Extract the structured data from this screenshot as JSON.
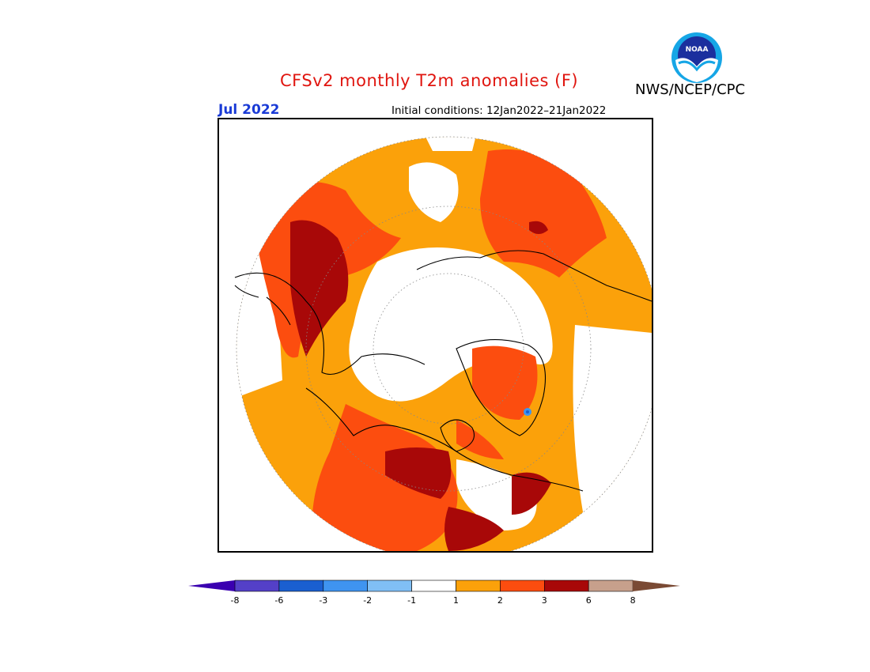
{
  "title": "CFSv2 monthly T2m anomalies (F)",
  "agency": "NWS/NCEP/CPC",
  "logo_text": "NOAA",
  "valid_month": "Jul 2022",
  "initial_conditions": "Initial conditions: 12Jan2022–21Jan2022",
  "map": {
    "projection": "north polar stereographic",
    "variable": "2-m temperature anomaly",
    "units": "F"
  },
  "colorbar": {
    "left_arrow_color": "#3a00b0",
    "right_arrow_color": "#7a4a34",
    "bins": [
      {
        "color": "#5440c8"
      },
      {
        "color": "#1a5fd0"
      },
      {
        "color": "#3f94f0"
      },
      {
        "color": "#80bff5"
      },
      {
        "color": "#ffffff"
      },
      {
        "color": "#fba10a"
      },
      {
        "color": "#fc4d0f"
      },
      {
        "color": "#a80808"
      },
      {
        "color": "#c7a08c"
      }
    ],
    "tick_labels": [
      "-8",
      "-6",
      "-3",
      "-2",
      "-1",
      "1",
      "2",
      "3",
      "6",
      "8"
    ]
  }
}
